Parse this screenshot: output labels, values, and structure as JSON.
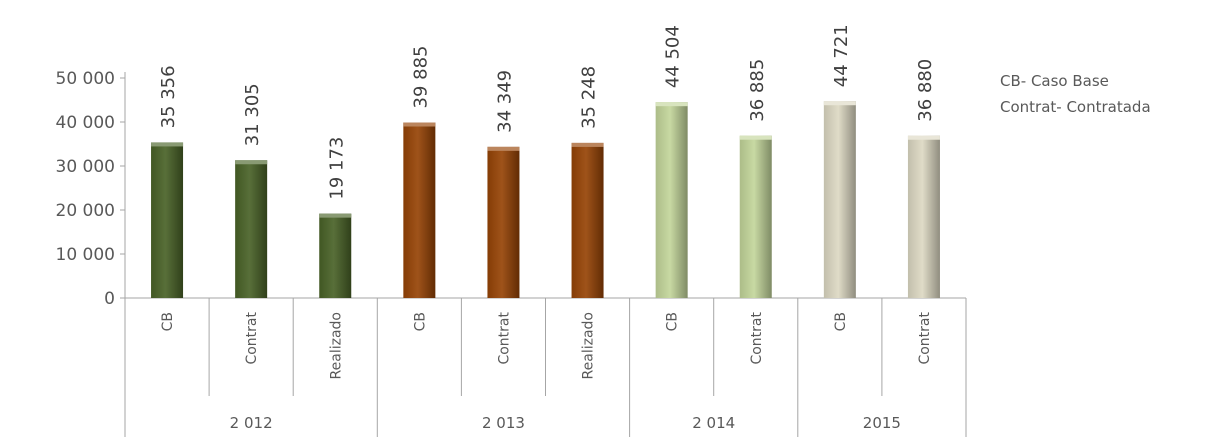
{
  "chart_data": {
    "type": "bar",
    "title": "",
    "xlabel": "",
    "ylabel": "",
    "ylim": [
      0,
      50000
    ],
    "y_ticks": [
      "0",
      "10 000",
      "20 000",
      "30 000",
      "40 000",
      "50 000"
    ],
    "y_tick_values": [
      0,
      10000,
      20000,
      30000,
      40000,
      50000
    ],
    "grid": false,
    "legend_position": "right",
    "groups": [
      {
        "label": "2 012",
        "categories": [
          "CB",
          "Contrat",
          "Realizado"
        ],
        "values": [
          35356,
          31305,
          19173
        ],
        "value_labels": [
          "35 356",
          "31 305",
          "19 173"
        ],
        "color": "#4a6328"
      },
      {
        "label": "2 013",
        "categories": [
          "CB",
          "Contrat",
          "Realizado"
        ],
        "values": [
          39885,
          34349,
          35248
        ],
        "value_labels": [
          "39 885",
          "34 349",
          "35 248"
        ],
        "color": "#974406"
      },
      {
        "label": "2 014",
        "categories": [
          "CB",
          "Contrat"
        ],
        "values": [
          44504,
          36885
        ],
        "value_labels": [
          "44 504",
          "36 885"
        ],
        "color": "#c3d69b"
      },
      {
        "label": "2015",
        "categories": [
          "CB",
          "Contrat"
        ],
        "values": [
          44721,
          36880
        ],
        "value_labels": [
          "44 721",
          "36 880"
        ],
        "color": "#ddd9c3"
      }
    ],
    "notes": [
      "CB- Caso Base",
      "Contrat- Contratada"
    ]
  }
}
